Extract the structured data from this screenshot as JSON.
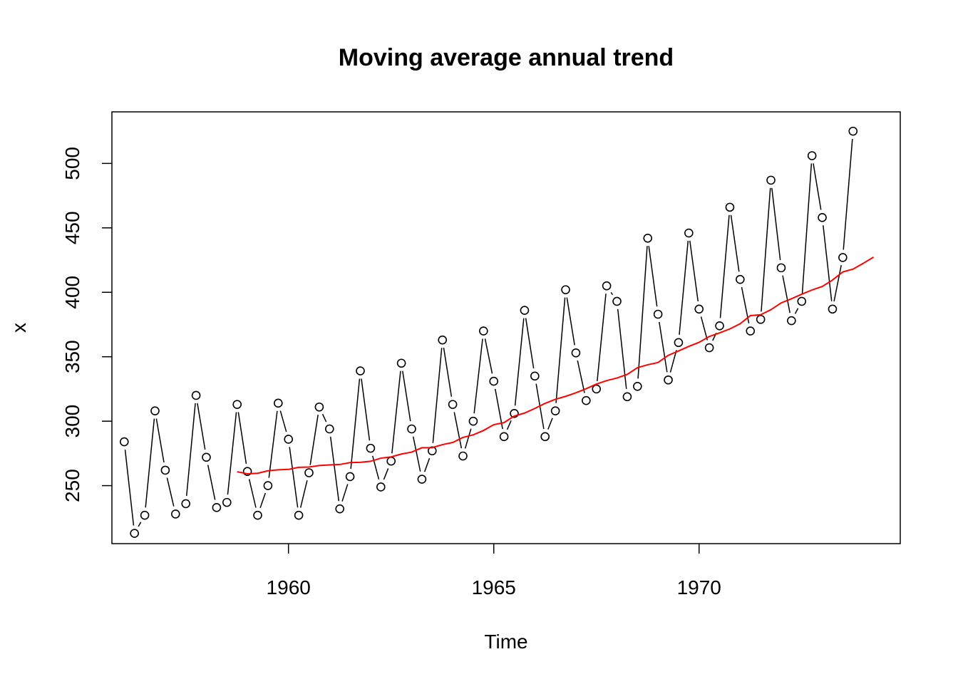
{
  "chart_data": {
    "type": "line",
    "title": "Moving average annual trend",
    "xlabel": "Time",
    "ylabel": "x",
    "xlim": [
      1955.7,
      1974.9
    ],
    "ylim": [
      205,
      540
    ],
    "x_ticks": [
      1960,
      1965,
      1970
    ],
    "y_ticks": [
      250,
      300,
      350,
      400,
      450,
      500
    ],
    "grid": false,
    "legend": "none",
    "colors": {
      "series": "#000000",
      "trend": "#ff0000"
    },
    "series": [
      {
        "style": "b",
        "x_start": 1956.0,
        "step": 0.25,
        "values": [
          284,
          213,
          227,
          308,
          262,
          228,
          236,
          320,
          272,
          233,
          237,
          313,
          261,
          227,
          250,
          314,
          286,
          227,
          260,
          311,
          294,
          232,
          257,
          339,
          279,
          249,
          269,
          345,
          294,
          255,
          277,
          363,
          313,
          273,
          300,
          370,
          331,
          288,
          306,
          386,
          335,
          288,
          308,
          402,
          353,
          316,
          325,
          405,
          393,
          319,
          327,
          442,
          383,
          332,
          361,
          446,
          387,
          357,
          374,
          466,
          410,
          370,
          379,
          487,
          419,
          378,
          393,
          506,
          458,
          387,
          427,
          525
        ]
      },
      {
        "style": "l",
        "x_start": 1958.75,
        "step": 0.25,
        "values": [
          260.8,
          259.2,
          259.6,
          261.5,
          262.3,
          262.6,
          264.2,
          264.4,
          265.6,
          266.1,
          266.4,
          267.9,
          268.1,
          268.9,
          271.3,
          272.3,
          274.5,
          276.0,
          279.4,
          279.5,
          281.8,
          283.5,
          287.4,
          289.4,
          292.8,
          297.3,
          298.9,
          304.0,
          306.3,
          309.9,
          313.8,
          317.0,
          319.3,
          322.0,
          325.2,
          328.8,
          331.5,
          333.5,
          336.3,
          341.5,
          343.8,
          345.5,
          351.1,
          354.5,
          358.0,
          361.2,
          365.7,
          368.5,
          371.6,
          375.6,
          381.9,
          382.6,
          386.5,
          391.8,
          395.0,
          398.5,
          401.8,
          404.5,
          409.5,
          415.8,
          418.0,
          422.5,
          427.3
        ]
      }
    ]
  }
}
